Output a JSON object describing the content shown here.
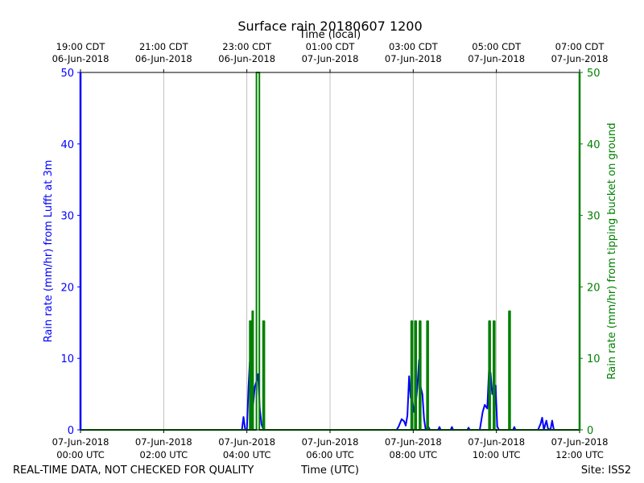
{
  "chart_data": {
    "type": "line",
    "title": "Surface rain 20180607 1200",
    "xlabel_bottom": "Time (UTC)",
    "xlabel_top": "Time (local)",
    "ylabel_left": "Rain rate (mm/hr) from Lufft at 3m",
    "ylabel_right": "Rain rate (mm/hr) from tipping bucket on ground",
    "x_unit": "hours since 07-Jun-2018 00:00 UTC",
    "xlim": [
      0,
      12
    ],
    "ylim_left": [
      0,
      50
    ],
    "ylim_right": [
      0,
      50
    ],
    "yticks": [
      0,
      10,
      20,
      30,
      40,
      50
    ],
    "grid": "vertical",
    "bottom_ticks": [
      {
        "x": 0,
        "line1": "07-Jun-2018",
        "line2": "00:00 UTC"
      },
      {
        "x": 2,
        "line1": "07-Jun-2018",
        "line2": "02:00 UTC"
      },
      {
        "x": 4,
        "line1": "07-Jun-2018",
        "line2": "04:00 UTC"
      },
      {
        "x": 6,
        "line1": "07-Jun-2018",
        "line2": "06:00 UTC"
      },
      {
        "x": 8,
        "line1": "07-Jun-2018",
        "line2": "08:00 UTC"
      },
      {
        "x": 10,
        "line1": "07-Jun-2018",
        "line2": "10:00 UTC"
      },
      {
        "x": 12,
        "line1": "07-Jun-2018",
        "line2": "12:00 UTC"
      }
    ],
    "top_ticks": [
      {
        "x": 0,
        "line1": "19:00 CDT",
        "line2": "06-Jun-2018"
      },
      {
        "x": 2,
        "line1": "21:00 CDT",
        "line2": "06-Jun-2018"
      },
      {
        "x": 4,
        "line1": "23:00 CDT",
        "line2": "06-Jun-2018"
      },
      {
        "x": 6,
        "line1": "01:00 CDT",
        "line2": "07-Jun-2018"
      },
      {
        "x": 8,
        "line1": "03:00 CDT",
        "line2": "07-Jun-2018"
      },
      {
        "x": 10,
        "line1": "05:00 CDT",
        "line2": "07-Jun-2018"
      },
      {
        "x": 12,
        "line1": "07:00 CDT",
        "line2": "07-Jun-2018"
      }
    ],
    "series": [
      {
        "name": "Lufft at 3m",
        "axis": "left",
        "color": "#0000ff",
        "points": [
          [
            0,
            0
          ],
          [
            3.88,
            0
          ],
          [
            3.92,
            1.8
          ],
          [
            3.96,
            0
          ],
          [
            4.0,
            0
          ],
          [
            4.04,
            6
          ],
          [
            4.07,
            9.5
          ],
          [
            4.11,
            7
          ],
          [
            4.15,
            3.5
          ],
          [
            4.19,
            6
          ],
          [
            4.23,
            6.8
          ],
          [
            4.27,
            7.8
          ],
          [
            4.31,
            3
          ],
          [
            4.35,
            0.8
          ],
          [
            4.4,
            0
          ],
          [
            7.6,
            0
          ],
          [
            7.65,
            0.5
          ],
          [
            7.72,
            1.5
          ],
          [
            7.78,
            1.2
          ],
          [
            7.82,
            0.6
          ],
          [
            7.86,
            2
          ],
          [
            7.9,
            7.5
          ],
          [
            7.94,
            4.5
          ],
          [
            7.98,
            4
          ],
          [
            8.02,
            2.5
          ],
          [
            8.06,
            3.5
          ],
          [
            8.1,
            6
          ],
          [
            8.14,
            9.8
          ],
          [
            8.18,
            6
          ],
          [
            8.22,
            5
          ],
          [
            8.26,
            1.5
          ],
          [
            8.3,
            0
          ],
          [
            8.36,
            0.5
          ],
          [
            8.4,
            0
          ],
          [
            8.6,
            0
          ],
          [
            8.63,
            0.4
          ],
          [
            8.66,
            0
          ],
          [
            8.9,
            0
          ],
          [
            8.93,
            0.4
          ],
          [
            8.96,
            0
          ],
          [
            9.3,
            0
          ],
          [
            9.33,
            0.3
          ],
          [
            9.36,
            0
          ],
          [
            9.6,
            0
          ],
          [
            9.67,
            2.5
          ],
          [
            9.72,
            3.5
          ],
          [
            9.78,
            3
          ],
          [
            9.82,
            8.3
          ],
          [
            9.86,
            8
          ],
          [
            9.9,
            5
          ],
          [
            9.94,
            5.2
          ],
          [
            9.98,
            6.2
          ],
          [
            10.02,
            0.5
          ],
          [
            10.06,
            0
          ],
          [
            10.4,
            0
          ],
          [
            10.43,
            0.4
          ],
          [
            10.46,
            0
          ],
          [
            11.0,
            0
          ],
          [
            11.06,
            0.8
          ],
          [
            11.1,
            1.7
          ],
          [
            11.14,
            0
          ],
          [
            11.2,
            1.3
          ],
          [
            11.24,
            0.2
          ],
          [
            11.3,
            0
          ],
          [
            11.34,
            1.3
          ],
          [
            11.38,
            0
          ],
          [
            12,
            0
          ]
        ]
      },
      {
        "name": "tipping bucket on ground",
        "axis": "right",
        "color": "#008000",
        "points": [
          [
            0,
            0
          ],
          [
            4.07,
            0
          ],
          [
            4.07,
            15.2
          ],
          [
            4.1,
            15.2
          ],
          [
            4.1,
            0
          ],
          [
            4.13,
            0
          ],
          [
            4.13,
            16.6
          ],
          [
            4.15,
            16.6
          ],
          [
            4.15,
            0
          ],
          [
            4.23,
            0
          ],
          [
            4.23,
            50
          ],
          [
            4.3,
            50
          ],
          [
            4.3,
            0
          ],
          [
            4.39,
            0
          ],
          [
            4.39,
            15.2
          ],
          [
            4.42,
            15.2
          ],
          [
            4.42,
            0
          ],
          [
            7.95,
            0
          ],
          [
            7.95,
            15.2
          ],
          [
            7.98,
            15.2
          ],
          [
            7.98,
            0
          ],
          [
            8.04,
            0
          ],
          [
            8.04,
            15.2
          ],
          [
            8.07,
            15.2
          ],
          [
            8.07,
            0
          ],
          [
            8.15,
            0
          ],
          [
            8.15,
            15.2
          ],
          [
            8.18,
            15.2
          ],
          [
            8.18,
            0
          ],
          [
            8.33,
            0
          ],
          [
            8.33,
            15.2
          ],
          [
            8.36,
            15.2
          ],
          [
            8.36,
            0
          ],
          [
            9.82,
            0
          ],
          [
            9.82,
            15.2
          ],
          [
            9.85,
            15.2
          ],
          [
            9.85,
            0
          ],
          [
            9.93,
            0
          ],
          [
            9.93,
            15.2
          ],
          [
            9.96,
            15.2
          ],
          [
            9.96,
            0
          ],
          [
            10.3,
            0
          ],
          [
            10.3,
            16.6
          ],
          [
            10.33,
            16.6
          ],
          [
            10.33,
            0
          ],
          [
            12,
            0
          ]
        ]
      }
    ]
  },
  "footer": {
    "left": "REAL-TIME DATA, NOT CHECKED FOR QUALITY",
    "right": "Site: ISS2"
  }
}
